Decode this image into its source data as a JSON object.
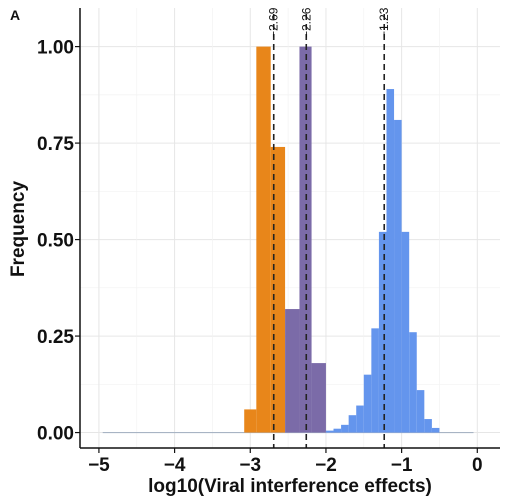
{
  "chart_data": {
    "type": "bar",
    "panel_label": "A",
    "xlabel": "log10(Viral interference effects)",
    "ylabel": "Frequency",
    "xlim": [
      -5.25,
      0.3
    ],
    "ylim": [
      -0.04,
      1.1
    ],
    "x_ticks": [
      {
        "value": -5,
        "label": "−5"
      },
      {
        "value": -4,
        "label": "−4"
      },
      {
        "value": -3,
        "label": "−3"
      },
      {
        "value": -2,
        "label": "−2"
      },
      {
        "value": -1,
        "label": "−1"
      },
      {
        "value": 0,
        "label": "0"
      }
    ],
    "y_ticks": [
      {
        "value": 0,
        "label": "0.00"
      },
      {
        "value": 0.25,
        "label": "0.25"
      },
      {
        "value": 0.5,
        "label": "0.50"
      },
      {
        "value": 0.75,
        "label": "0.75"
      },
      {
        "value": 1.0,
        "label": "1.00"
      }
    ],
    "grid": true,
    "series": [
      {
        "color": "#E8861A",
        "bars": [
          {
            "x0": -3.08,
            "x1": -2.92,
            "y": 0.06
          },
          {
            "x0": -2.92,
            "x1": -2.73,
            "y": 1.0
          },
          {
            "x0": -2.73,
            "x1": -2.54,
            "y": 0.74
          }
        ]
      },
      {
        "color": "#7B6BA8",
        "bars": [
          {
            "x0": -2.54,
            "x1": -2.35,
            "y": 0.32
          },
          {
            "x0": -2.35,
            "x1": -2.19,
            "y": 1.0
          },
          {
            "x0": -2.19,
            "x1": -2.0,
            "y": 0.18
          }
        ]
      },
      {
        "color": "#6495ED",
        "bars": [
          {
            "x0": -2.0,
            "x1": -1.9,
            "y": 0.005
          },
          {
            "x0": -1.9,
            "x1": -1.8,
            "y": 0.01
          },
          {
            "x0": -1.8,
            "x1": -1.7,
            "y": 0.02
          },
          {
            "x0": -1.7,
            "x1": -1.6,
            "y": 0.045
          },
          {
            "x0": -1.6,
            "x1": -1.5,
            "y": 0.07
          },
          {
            "x0": -1.5,
            "x1": -1.4,
            "y": 0.15
          },
          {
            "x0": -1.4,
            "x1": -1.3,
            "y": 0.27
          },
          {
            "x0": -1.3,
            "x1": -1.2,
            "y": 0.52
          },
          {
            "x0": -1.2,
            "x1": -1.1,
            "y": 0.89
          },
          {
            "x0": -1.1,
            "x1": -1.0,
            "y": 0.81
          },
          {
            "x0": -1.0,
            "x1": -0.9,
            "y": 0.52
          },
          {
            "x0": -0.9,
            "x1": -0.8,
            "y": 0.26
          },
          {
            "x0": -0.8,
            "x1": -0.7,
            "y": 0.11
          },
          {
            "x0": -0.7,
            "x1": -0.6,
            "y": 0.035
          },
          {
            "x0": -0.6,
            "x1": -0.5,
            "y": 0.012
          }
        ]
      }
    ],
    "baseline": {
      "x0": -4.95,
      "x1": -0.05,
      "color": "#a8b4c4"
    },
    "vlines": [
      {
        "x": -2.69,
        "label": "−2.69"
      },
      {
        "x": -2.26,
        "label": "−2.26"
      },
      {
        "x": -1.23,
        "label": "−1.23"
      }
    ]
  }
}
